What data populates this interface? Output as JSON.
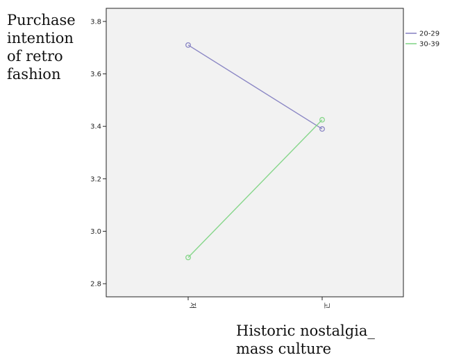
{
  "chart_data": {
    "type": "line",
    "categories": [
      "저",
      "고"
    ],
    "series": [
      {
        "name": "20-29",
        "values": [
          3.71,
          3.39
        ],
        "color": "#8a86c4"
      },
      {
        "name": "30-39",
        "values": [
          2.9,
          3.425
        ],
        "color": "#86d68a"
      }
    ],
    "ylim": [
      2.75,
      3.85
    ],
    "yticks": [
      {
        "value": 2.8,
        "label": "2.8"
      },
      {
        "value": 3.0,
        "label": "3.0"
      },
      {
        "value": 3.2,
        "label": "3.2"
      },
      {
        "value": 3.4,
        "label": "3.4"
      },
      {
        "value": 3.6,
        "label": "3.6"
      },
      {
        "value": 3.8,
        "label": "3.8"
      }
    ],
    "ylabel_lines": [
      "Purchase",
      "intention",
      "of retro",
      "fashion"
    ],
    "xlabel_lines": [
      "Historic nostalgia_",
      "mass culture"
    ],
    "legend_position": "right",
    "grid": false,
    "plot_background": "#f2f2f2"
  }
}
